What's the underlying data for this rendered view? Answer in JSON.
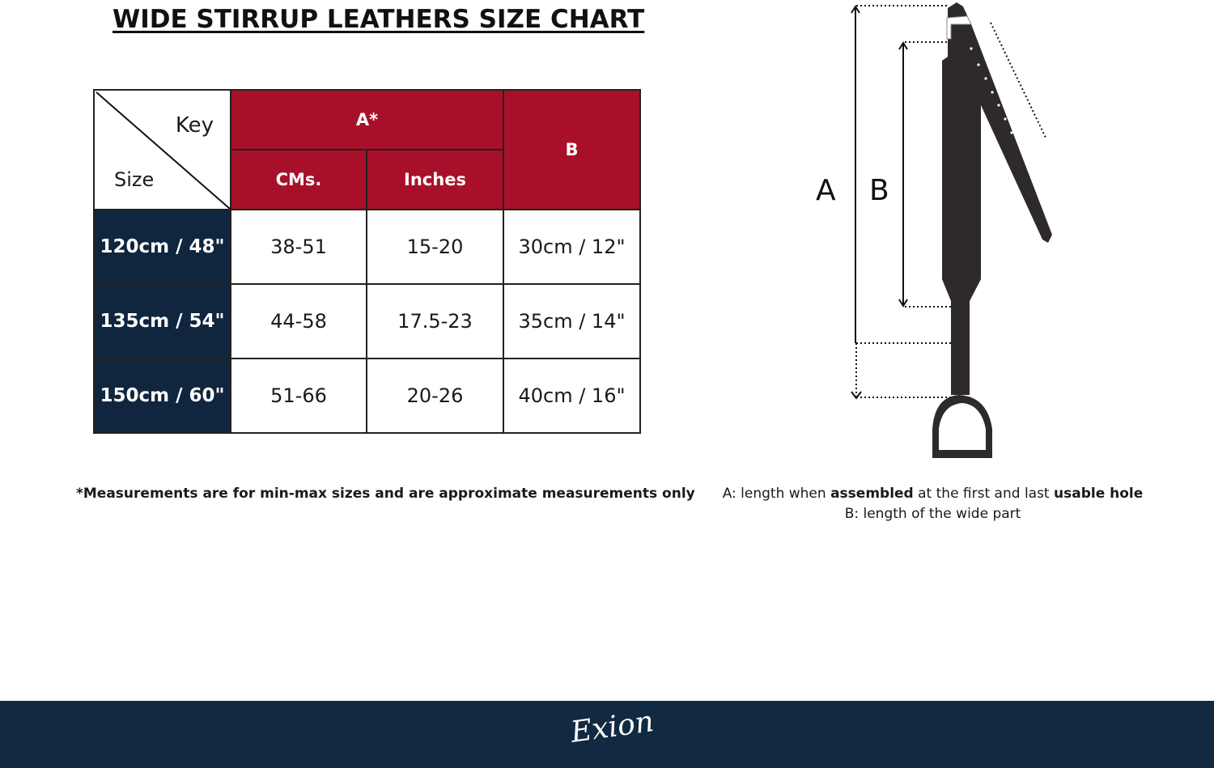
{
  "title": "WIDE STIRRUP LEATHERS  SIZE CHART",
  "table": {
    "key_label": "Key",
    "size_label": "Size",
    "group_a": "A*",
    "col_cms": "CMs.",
    "col_inches": "Inches",
    "col_b": "B",
    "rows": [
      {
        "size": "120cm / 48\"",
        "cms": "38-51",
        "inches": "15-20",
        "b": "30cm / 12\""
      },
      {
        "size": "135cm / 54\"",
        "cms": "44-58",
        "inches": "17.5-23",
        "b": "35cm / 14\""
      },
      {
        "size": "150cm / 60\"",
        "cms": "51-66",
        "inches": "20-26",
        "b": "40cm / 16\""
      }
    ]
  },
  "footnote": "*Measurements are for min-max sizes and are approximate measurements only",
  "diagram": {
    "label_a": "A",
    "label_b": "B",
    "legend_a": {
      "prefix": "A: length when ",
      "bold1": "assembled",
      "mid": " at the first and last ",
      "bold2": "usable hole"
    },
    "legend_b": "B: length of the wide part"
  },
  "footer": {
    "brand": "Exion"
  },
  "colors": {
    "header_red": "#a8102a",
    "size_navy": "#10263f",
    "footer": "#112a42"
  }
}
